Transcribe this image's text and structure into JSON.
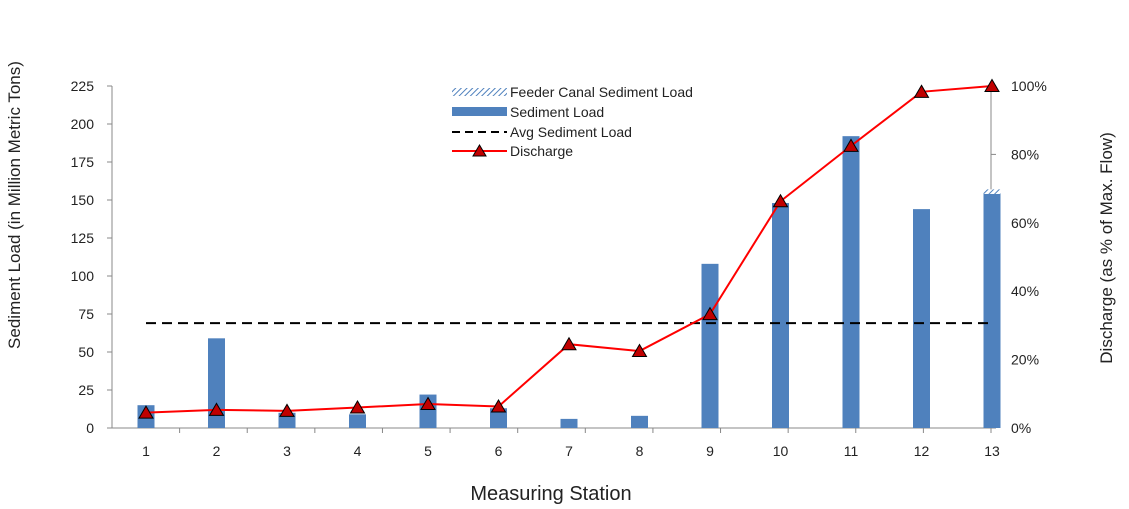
{
  "chart_data": {
    "type": "bar",
    "xlabel": "Measuring Station",
    "ylabel": "Sediment Load  (in Million Metric Tons)",
    "y2label": "Discharge  (as % of Max. Flow)",
    "ylim": [
      0,
      225
    ],
    "y2lim": [
      0,
      100
    ],
    "yticks": [
      "0",
      "25",
      "50",
      "75",
      "100",
      "125",
      "150",
      "175",
      "200",
      "225"
    ],
    "y2ticks": [
      "0%",
      "20%",
      "40%",
      "60%",
      "80%",
      "100%"
    ],
    "categories": [
      "1",
      "2",
      "3",
      "4",
      "5",
      "6",
      "7",
      "8",
      "9",
      "10",
      "11",
      "12",
      "13"
    ],
    "series": [
      {
        "name": "Feeder Canal Sediment Load",
        "kind": "stacked-bar-hatched",
        "values": [
          0,
          0,
          0,
          0,
          0,
          0,
          0,
          0,
          0,
          0,
          0,
          0,
          3
        ]
      },
      {
        "name": "Sediment Load",
        "kind": "bar",
        "color": "#4f81bd",
        "values": [
          15,
          59,
          10,
          9,
          22,
          13,
          6,
          8,
          108,
          148,
          192,
          144,
          154
        ]
      },
      {
        "name": "Avg Sediment Load",
        "kind": "dashed-line",
        "color": "#000000",
        "value": 69
      },
      {
        "name": "Discharge",
        "kind": "line-markers",
        "axis": "y2",
        "color": "#ff0000",
        "marker_color": "#c00000",
        "values": [
          4.5,
          5.3,
          5,
          6,
          7,
          6.3,
          24.5,
          22.5,
          33.3,
          66.3,
          82.5,
          98.3,
          100
        ]
      }
    ],
    "legend_position": "top-center",
    "grid": false
  }
}
